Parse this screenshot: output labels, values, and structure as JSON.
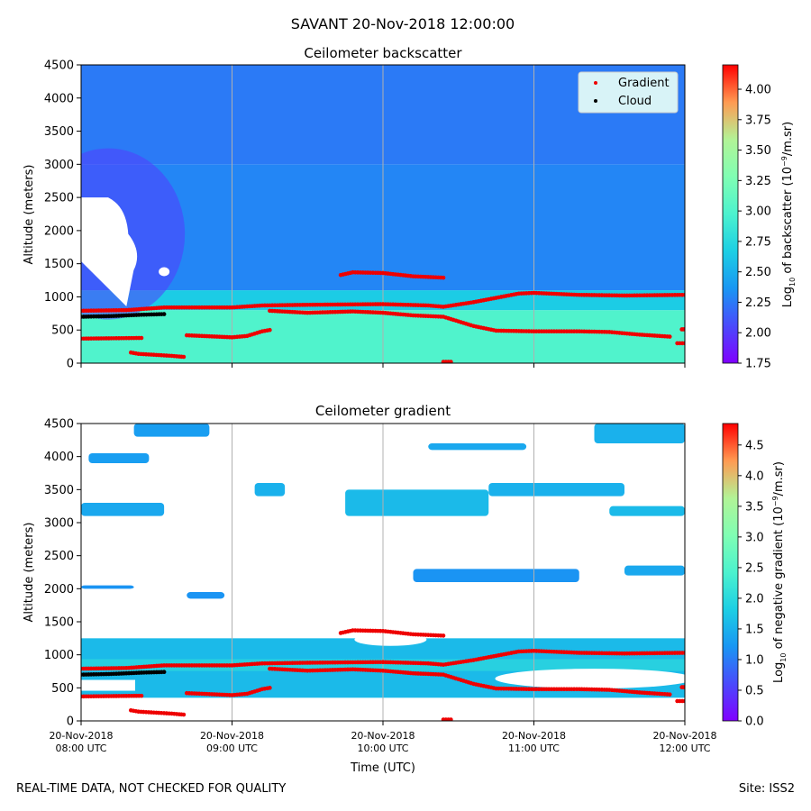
{
  "title": "SAVANT 20-Nov-2018 12:00:00",
  "footer": {
    "quality_note": "REAL-TIME DATA, NOT CHECKED FOR QUALITY",
    "site": "Site: ISS2"
  },
  "colors": {
    "gradient_points": "#ee0000",
    "cloud_points": "#000000",
    "grid": "#b0b0b0"
  },
  "chart_data": [
    {
      "type": "heatmap",
      "title": "Ceilometer backscatter",
      "ylabel": "Altitude (meters)",
      "xlabel": "",
      "xlim": [
        0,
        4
      ],
      "ylim": [
        0,
        4500
      ],
      "yticks": [
        0,
        500,
        1000,
        1500,
        2000,
        2500,
        3000,
        3500,
        4000,
        4500
      ],
      "xtick_positions": [
        0,
        1,
        2,
        3,
        4
      ],
      "xtick_labels": [],
      "grid": "vertical lines at each hour",
      "legend": {
        "position": "top-right",
        "entries": [
          "Gradient",
          "Cloud"
        ]
      },
      "colorbar": {
        "label_prefix": "Log",
        "label_sub": "10",
        "label_mid": " of backscatter (10",
        "label_sup": "−9",
        "label_suffix": "/m.sr)",
        "range": [
          1.75,
          4.2
        ],
        "ticks": [
          "1.75",
          "2.00",
          "2.25",
          "2.50",
          "2.75",
          "3.00",
          "3.25",
          "3.50",
          "3.75",
          "4.00"
        ]
      },
      "background_levels": [
        {
          "from": 0,
          "to": 800,
          "value": 3.0
        },
        {
          "from": 800,
          "to": 1100,
          "value": 2.65
        },
        {
          "from": 1100,
          "to": 3000,
          "value": 2.3
        },
        {
          "from": 3000,
          "to": 4500,
          "value": 2.25
        }
      ],
      "no_data_regions": [
        {
          "description": "white cloud gap",
          "x_range": [
            0.0,
            0.36
          ],
          "alt_range": [
            1400,
            2500
          ]
        },
        {
          "description": "small gap",
          "x": 0.55,
          "alt": 1380
        }
      ]
    },
    {
      "type": "heatmap",
      "title": "Ceilometer gradient",
      "ylabel": "Altitude (meters)",
      "xlabel": "Time (UTC)",
      "xlim": [
        0,
        4
      ],
      "ylim": [
        0,
        4500
      ],
      "yticks": [
        0,
        500,
        1000,
        1500,
        2000,
        2500,
        3000,
        3500,
        4000,
        4500
      ],
      "xtick_positions": [
        0,
        1,
        2,
        3,
        4
      ],
      "xtick_labels": [
        [
          "20-Nov-2018",
          "08:00 UTC"
        ],
        [
          "20-Nov-2018",
          "09:00 UTC"
        ],
        [
          "20-Nov-2018",
          "10:00 UTC"
        ],
        [
          "20-Nov-2018",
          "11:00 UTC"
        ],
        [
          "20-Nov-2018",
          "12:00 UTC"
        ]
      ],
      "grid": "vertical lines at each hour",
      "colorbar": {
        "label_prefix": "Log",
        "label_sub": "10",
        "label_mid": " of negative gradient (10",
        "label_sup": "−9",
        "label_suffix": "/m.sr)",
        "range": [
          0.0,
          4.85
        ],
        "ticks": [
          "0.0",
          "0.5",
          "1.0",
          "1.5",
          "2.0",
          "2.5",
          "3.0",
          "3.5",
          "4.0",
          "4.5"
        ]
      },
      "layer_band": {
        "alt_range": [
          350,
          1250
        ],
        "value": 1.6
      },
      "cloud_patches": [
        {
          "x": [
            0.0,
            0.55
          ],
          "alt": [
            3100,
            3300
          ],
          "value": 1.4
        },
        {
          "x": [
            0.05,
            0.45
          ],
          "alt": [
            3900,
            4050
          ],
          "value": 1.3
        },
        {
          "x": [
            0.0,
            0.35
          ],
          "alt": [
            2000,
            2050
          ],
          "value": 1.2
        },
        {
          "x": [
            0.35,
            0.85
          ],
          "alt": [
            4300,
            4500
          ],
          "value": 1.3
        },
        {
          "x": [
            1.15,
            1.35
          ],
          "alt": [
            3400,
            3600
          ],
          "value": 1.5
        },
        {
          "x": [
            1.75,
            2.7
          ],
          "alt": [
            3100,
            3500
          ],
          "value": 1.6
        },
        {
          "x": [
            2.3,
            2.95
          ],
          "alt": [
            4100,
            4200
          ],
          "value": 1.4
        },
        {
          "x": [
            2.2,
            3.3
          ],
          "alt": [
            2100,
            2300
          ],
          "value": 1.2
        },
        {
          "x": [
            2.7,
            3.6
          ],
          "alt": [
            3400,
            3600
          ],
          "value": 1.5
        },
        {
          "x": [
            3.5,
            4.0
          ],
          "alt": [
            3100,
            3250
          ],
          "value": 1.6
        },
        {
          "x": [
            3.4,
            4.0
          ],
          "alt": [
            4200,
            4500
          ],
          "value": 1.5
        },
        {
          "x": [
            3.6,
            4.0
          ],
          "alt": [
            2200,
            2350
          ],
          "value": 1.4
        },
        {
          "x": [
            0.7,
            0.95
          ],
          "alt": [
            1850,
            1950
          ],
          "value": 1.2
        }
      ]
    }
  ],
  "overlays": {
    "gradient_series": [
      {
        "name": "upper layer top",
        "x": [
          0.0,
          0.3,
          0.55,
          1.0,
          1.2,
          1.5,
          2.0,
          2.3,
          2.4,
          2.6,
          2.9,
          3.0,
          3.3,
          3.6,
          4.0
        ],
        "y": [
          790,
          800,
          840,
          840,
          870,
          880,
          890,
          870,
          850,
          920,
          1050,
          1060,
          1030,
          1020,
          1030
        ]
      },
      {
        "name": "lower layer",
        "x": [
          0.0,
          0.4
        ],
        "y": [
          370,
          380
        ]
      },
      {
        "name": "mid layer",
        "x": [
          0.7,
          1.0,
          1.1,
          1.2,
          1.25
        ],
        "y": [
          420,
          390,
          410,
          480,
          500
        ]
      },
      {
        "name": "trough",
        "x": [
          1.25,
          1.5,
          1.8,
          2.0,
          2.2,
          2.4,
          2.6,
          2.75,
          3.0,
          3.3,
          3.5,
          3.7,
          3.9
        ],
        "y": [
          790,
          760,
          780,
          760,
          720,
          700,
          560,
          490,
          480,
          480,
          470,
          430,
          400
        ]
      },
      {
        "name": "elevated layer",
        "x": [
          1.72,
          1.8,
          2.0,
          2.2,
          2.4
        ],
        "y": [
          1330,
          1370,
          1360,
          1310,
          1290
        ]
      },
      {
        "name": "isolated points",
        "x": [
          0.33,
          0.38,
          0.6,
          0.65,
          0.68,
          3.95,
          4.0
        ],
        "y": [
          160,
          140,
          110,
          100,
          95,
          300,
          300
        ]
      },
      {
        "name": "late fragment",
        "x": [
          3.98,
          4.0
        ],
        "y": [
          510,
          510
        ]
      },
      {
        "name": "surface",
        "x": [
          2.4,
          2.45
        ],
        "y": [
          20,
          20
        ]
      }
    ],
    "cloud_series": [
      {
        "name": "cloud base",
        "x": [
          0.0,
          0.1,
          0.2,
          0.3,
          0.4,
          0.55
        ],
        "y": [
          700,
          705,
          710,
          720,
          730,
          740
        ]
      }
    ]
  }
}
